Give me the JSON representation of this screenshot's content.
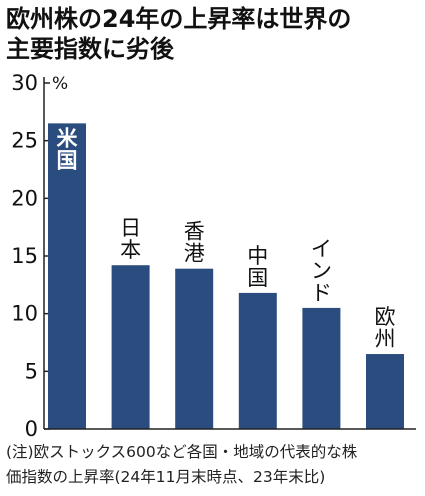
{
  "title": {
    "line1": "欧州株の24年の上昇率は世界の",
    "line2": "主要指数に劣後"
  },
  "footnote": {
    "line1": "(注)欧ストックス600など各国・地域の代表的な株",
    "line2": "価指数の上昇率(24年11月末時点、23年末比)"
  },
  "colors": {
    "bar": "#2b4c7e",
    "axis": "#222222",
    "grid": "#d8d8d8"
  },
  "chart_data": {
    "type": "bar",
    "categories": [
      "米国",
      "日本",
      "香港",
      "中国",
      "インド",
      "欧州"
    ],
    "values": [
      26.5,
      14.2,
      13.9,
      11.8,
      10.5,
      6.5
    ],
    "ylim": [
      0,
      30
    ],
    "yticks": [
      "0",
      "5",
      "10",
      "15",
      "20",
      "25",
      "30"
    ],
    "unit": "%",
    "grid": false
  }
}
